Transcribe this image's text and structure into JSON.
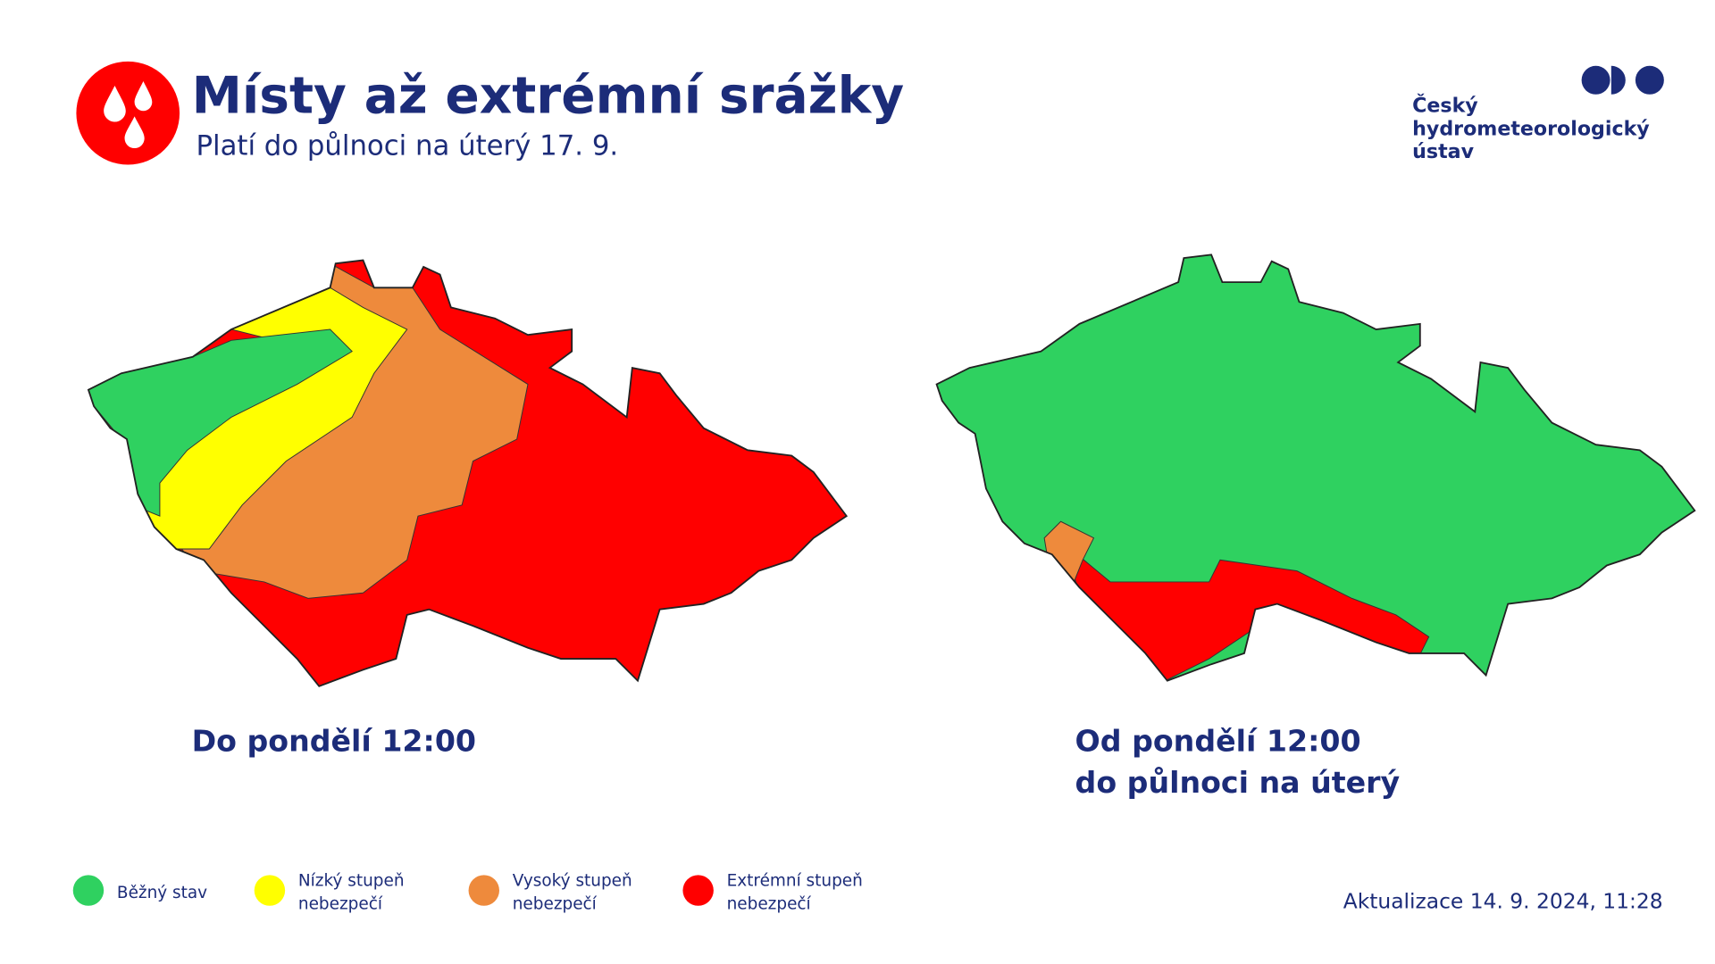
{
  "header": {
    "title": "Místy až extrémní srážky",
    "subtitle": "Platí do půlnoci na úterý 17. 9."
  },
  "logo": {
    "lines": [
      "Český",
      "hydrometeorologický",
      "ústav"
    ]
  },
  "maps": [
    {
      "caption": [
        "Do pondělí 12:00"
      ]
    },
    {
      "caption": [
        "Od pondělí 12:00",
        "do půlnoci na úterý"
      ]
    }
  ],
  "legend": [
    {
      "label": [
        "Běžný stav"
      ],
      "color": "#2fd160"
    },
    {
      "label": [
        "Nízký stupeň",
        "nebezpečí"
      ],
      "color": "#ffff00"
    },
    {
      "label": [
        "Vysoký stupeň",
        "nebezpečí"
      ],
      "color": "#ee8a3c"
    },
    {
      "label": [
        "Extrémní stupeň",
        "nebezpečí"
      ],
      "color": "#ff0000"
    }
  ],
  "footer": {
    "updated": "Aktualizace 14. 9. 2024, 11:28"
  }
}
